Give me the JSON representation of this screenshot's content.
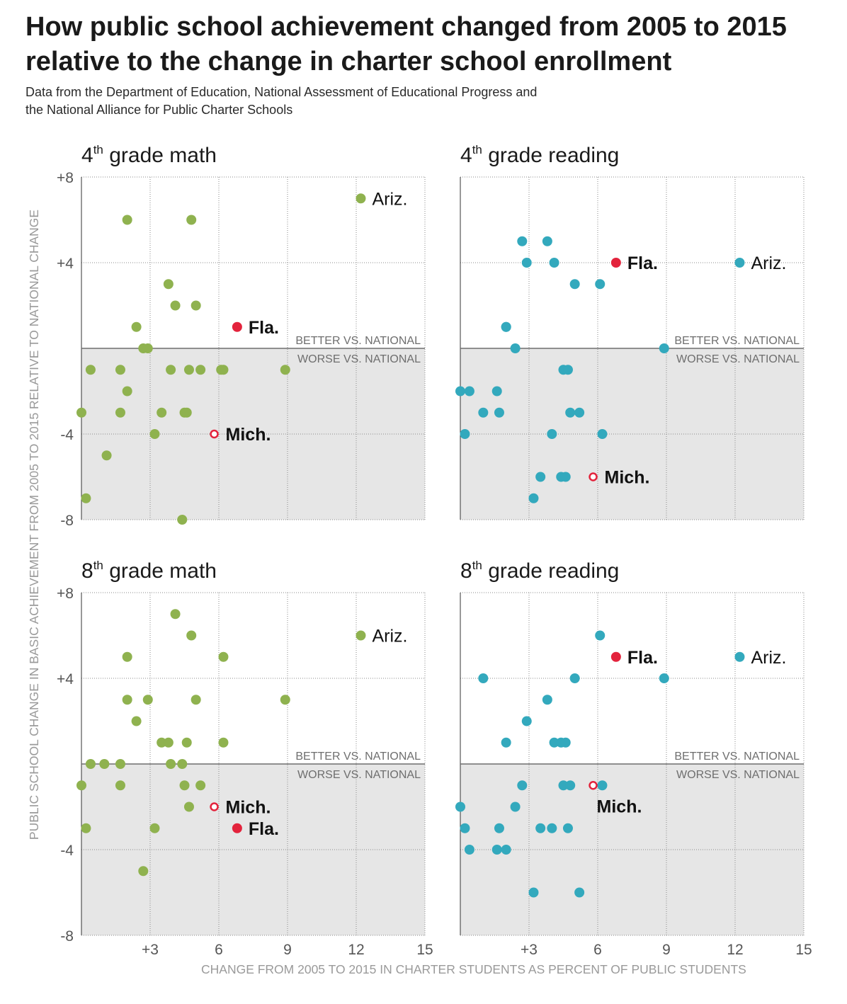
{
  "title": "How public school achievement changed from 2005 to 2015 relative to the change in charter school enrollment",
  "subtitle_line1": "Data from the Department of Education, National Assessment of Educational Progress and",
  "subtitle_line2": "the National Alliance for Public Charter Schools",
  "y_axis_label": "PUBLIC SCHOOL CHANGE IN BASIC ACHIEVEMENT FROM 2005 TO 2015 RELATIVE TO NATIONAL CHANGE",
  "x_axis_label": "CHANGE FROM 2005 TO 2015 IN CHARTER STUDENTS AS PERCENT OF PUBLIC STUDENTS",
  "better_label": "BETTER VS. NATIONAL",
  "worse_label": "WORSE VS. NATIONAL",
  "colors": {
    "math": "#8fb24f",
    "reading": "#33a9bd",
    "highlight": "#e3233c",
    "shade": "#e6e6e6",
    "axis_text": "#555555"
  },
  "chart_data": [
    {
      "type": "scatter",
      "grade": "4",
      "ordinal": "th",
      "subject": "grade math",
      "color_key": "math",
      "xlim": [
        0,
        15
      ],
      "ylim": [
        -8,
        8
      ],
      "x_ticks": [
        3,
        6,
        9,
        12,
        15
      ],
      "x_tick_labels": [
        "+3",
        "6",
        "9",
        "12",
        "15"
      ],
      "y_ticks": [
        8,
        4,
        -4,
        -8
      ],
      "y_tick_labels": [
        "+8",
        "+4",
        "-4",
        "-8"
      ],
      "points": [
        {
          "x": 2.0,
          "y": 6
        },
        {
          "x": 4.8,
          "y": 6
        },
        {
          "x": 3.8,
          "y": 3
        },
        {
          "x": 4.1,
          "y": 2
        },
        {
          "x": 5.0,
          "y": 2
        },
        {
          "x": 2.4,
          "y": 1
        },
        {
          "x": 2.7,
          "y": 0
        },
        {
          "x": 2.9,
          "y": 0
        },
        {
          "x": 0.4,
          "y": -1
        },
        {
          "x": 1.7,
          "y": -1
        },
        {
          "x": 3.9,
          "y": -1
        },
        {
          "x": 4.7,
          "y": -1
        },
        {
          "x": 5.2,
          "y": -1
        },
        {
          "x": 6.1,
          "y": -1
        },
        {
          "x": 6.2,
          "y": -1
        },
        {
          "x": 8.9,
          "y": -1
        },
        {
          "x": 2.0,
          "y": -2
        },
        {
          "x": 0.0,
          "y": -3
        },
        {
          "x": 1.7,
          "y": -3
        },
        {
          "x": 3.5,
          "y": -3
        },
        {
          "x": 4.5,
          "y": -3
        },
        {
          "x": 4.6,
          "y": -3
        },
        {
          "x": 3.2,
          "y": -4
        },
        {
          "x": 1.1,
          "y": -5
        },
        {
          "x": 0.2,
          "y": -7
        },
        {
          "x": 4.4,
          "y": -8
        },
        {
          "x": 12.2,
          "y": 7,
          "label": "Ariz.",
          "style": "normal"
        },
        {
          "x": 6.8,
          "y": 1,
          "label": "Fla.",
          "style": "highlight"
        },
        {
          "x": 5.8,
          "y": -4,
          "label": "Mich.",
          "style": "open"
        }
      ]
    },
    {
      "type": "scatter",
      "grade": "4",
      "ordinal": "th",
      "subject": "grade reading",
      "color_key": "reading",
      "xlim": [
        0,
        15
      ],
      "ylim": [
        -8,
        8
      ],
      "x_ticks": [
        3,
        6,
        9,
        12,
        15
      ],
      "x_tick_labels": [
        "+3",
        "6",
        "9",
        "12",
        "15"
      ],
      "y_ticks": [
        8,
        4,
        -4,
        -8
      ],
      "y_tick_labels": [
        "+8",
        "+4",
        "-4",
        "-8"
      ],
      "points": [
        {
          "x": 2.7,
          "y": 5
        },
        {
          "x": 3.8,
          "y": 5
        },
        {
          "x": 2.9,
          "y": 4
        },
        {
          "x": 4.1,
          "y": 4
        },
        {
          "x": 5.0,
          "y": 3
        },
        {
          "x": 6.1,
          "y": 3
        },
        {
          "x": 2.0,
          "y": 1
        },
        {
          "x": 2.0,
          "y": 1
        },
        {
          "x": 2.4,
          "y": 0
        },
        {
          "x": 8.9,
          "y": 0
        },
        {
          "x": 4.5,
          "y": -1
        },
        {
          "x": 4.7,
          "y": -1
        },
        {
          "x": 0.0,
          "y": -2
        },
        {
          "x": 0.4,
          "y": -2
        },
        {
          "x": 1.6,
          "y": -2
        },
        {
          "x": 1.0,
          "y": -3
        },
        {
          "x": 1.7,
          "y": -3
        },
        {
          "x": 4.8,
          "y": -3
        },
        {
          "x": 5.2,
          "y": -3
        },
        {
          "x": 0.2,
          "y": -4
        },
        {
          "x": 4.0,
          "y": -4
        },
        {
          "x": 6.2,
          "y": -4
        },
        {
          "x": 3.5,
          "y": -6
        },
        {
          "x": 4.4,
          "y": -6
        },
        {
          "x": 4.6,
          "y": -6
        },
        {
          "x": 3.2,
          "y": -7
        },
        {
          "x": 12.2,
          "y": 4,
          "label": "Ariz.",
          "style": "normal"
        },
        {
          "x": 6.8,
          "y": 4,
          "label": "Fla.",
          "style": "highlight"
        },
        {
          "x": 5.8,
          "y": -6,
          "label": "Mich.",
          "style": "open"
        }
      ]
    },
    {
      "type": "scatter",
      "grade": "8",
      "ordinal": "th",
      "subject": "grade math",
      "color_key": "math",
      "xlim": [
        0,
        15
      ],
      "ylim": [
        -8,
        8
      ],
      "x_ticks": [
        3,
        6,
        9,
        12,
        15
      ],
      "x_tick_labels": [
        "+3",
        "6",
        "9",
        "12",
        "15"
      ],
      "y_ticks": [
        8,
        4,
        -4,
        -8
      ],
      "y_tick_labels": [
        "+8",
        "+4",
        "-4",
        "-8"
      ],
      "points": [
        {
          "x": 4.1,
          "y": 7
        },
        {
          "x": 4.8,
          "y": 6
        },
        {
          "x": 2.0,
          "y": 5
        },
        {
          "x": 6.2,
          "y": 5
        },
        {
          "x": 2.0,
          "y": 3
        },
        {
          "x": 2.9,
          "y": 3
        },
        {
          "x": 5.0,
          "y": 3
        },
        {
          "x": 8.9,
          "y": 3
        },
        {
          "x": 2.4,
          "y": 2
        },
        {
          "x": 3.5,
          "y": 1
        },
        {
          "x": 3.8,
          "y": 1
        },
        {
          "x": 4.6,
          "y": 1
        },
        {
          "x": 6.2,
          "y": 1
        },
        {
          "x": 0.4,
          "y": 0
        },
        {
          "x": 1.0,
          "y": 0
        },
        {
          "x": 1.7,
          "y": 0
        },
        {
          "x": 3.9,
          "y": 0
        },
        {
          "x": 4.4,
          "y": 0
        },
        {
          "x": 0.0,
          "y": -1
        },
        {
          "x": 1.7,
          "y": -1
        },
        {
          "x": 4.5,
          "y": -1
        },
        {
          "x": 5.2,
          "y": -1
        },
        {
          "x": 4.7,
          "y": -2
        },
        {
          "x": 0.2,
          "y": -3
        },
        {
          "x": 3.2,
          "y": -3
        },
        {
          "x": 2.7,
          "y": -5
        },
        {
          "x": 12.2,
          "y": 6,
          "label": "Ariz.",
          "style": "normal"
        },
        {
          "x": 5.8,
          "y": -2,
          "label": "Mich.",
          "style": "open"
        },
        {
          "x": 6.8,
          "y": -3,
          "label": "Fla.",
          "style": "highlight"
        }
      ]
    },
    {
      "type": "scatter",
      "grade": "8",
      "ordinal": "th",
      "subject": "grade reading",
      "color_key": "reading",
      "xlim": [
        0,
        15
      ],
      "ylim": [
        -8,
        8
      ],
      "x_ticks": [
        3,
        6,
        9,
        12,
        15
      ],
      "x_tick_labels": [
        "+3",
        "6",
        "9",
        "12",
        "15"
      ],
      "y_ticks": [
        8,
        4,
        -4,
        -8
      ],
      "y_tick_labels": [
        "+8",
        "+4",
        "-4",
        "-8"
      ],
      "points": [
        {
          "x": 6.1,
          "y": 6
        },
        {
          "x": 1.0,
          "y": 4
        },
        {
          "x": 5.0,
          "y": 4
        },
        {
          "x": 8.9,
          "y": 4
        },
        {
          "x": 3.8,
          "y": 3
        },
        {
          "x": 2.9,
          "y": 2
        },
        {
          "x": 2.0,
          "y": 1
        },
        {
          "x": 4.1,
          "y": 1
        },
        {
          "x": 4.4,
          "y": 1
        },
        {
          "x": 4.6,
          "y": 1
        },
        {
          "x": 2.7,
          "y": -1
        },
        {
          "x": 4.5,
          "y": -1
        },
        {
          "x": 4.8,
          "y": -1
        },
        {
          "x": 6.2,
          "y": -1
        },
        {
          "x": 0.0,
          "y": -2
        },
        {
          "x": 2.4,
          "y": -2
        },
        {
          "x": 0.2,
          "y": -3
        },
        {
          "x": 1.7,
          "y": -3
        },
        {
          "x": 3.5,
          "y": -3
        },
        {
          "x": 4.0,
          "y": -3
        },
        {
          "x": 4.7,
          "y": -3
        },
        {
          "x": 0.4,
          "y": -4
        },
        {
          "x": 1.6,
          "y": -4
        },
        {
          "x": 2.0,
          "y": -4
        },
        {
          "x": 3.2,
          "y": -6
        },
        {
          "x": 5.2,
          "y": -6
        },
        {
          "x": 12.2,
          "y": 5,
          "label": "Ariz.",
          "style": "normal"
        },
        {
          "x": 6.8,
          "y": 5,
          "label": "Fla.",
          "style": "highlight"
        },
        {
          "x": 5.8,
          "y": -1,
          "label": "Mich.",
          "style": "open",
          "label_pos": "below"
        }
      ]
    }
  ]
}
